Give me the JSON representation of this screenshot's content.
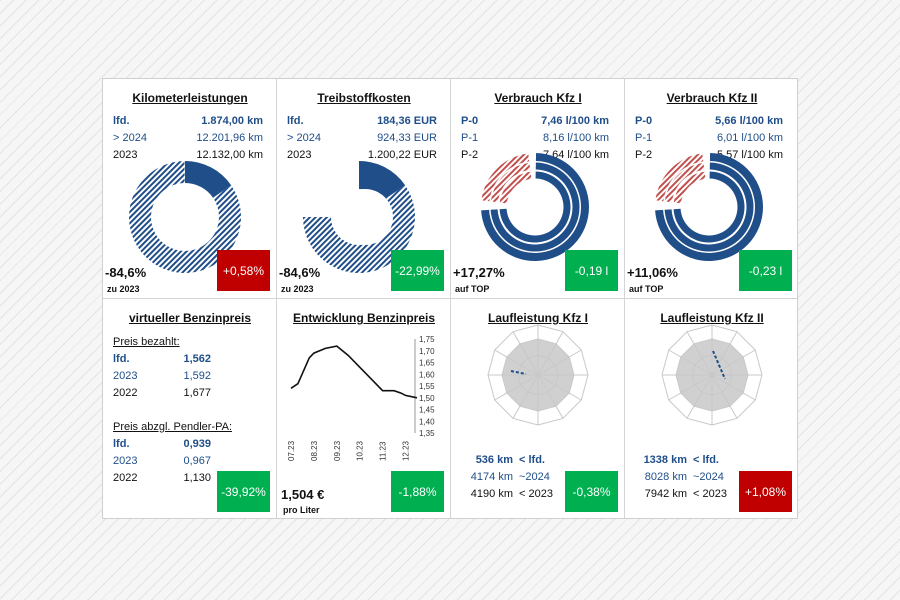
{
  "colors": {
    "navy": "#1f4e89",
    "green": "#00b050",
    "red": "#c00000",
    "hatch_red": "#c0504d",
    "radar_fill": "#d0d0d0"
  },
  "p1": {
    "title": "Kilometerleistungen",
    "rows": [
      {
        "k": "lfd.",
        "v": "1.874,00 km"
      },
      {
        "k": "> 2024",
        "v": "12.201,96 km"
      },
      {
        "k": "2023",
        "v": "12.132,00 km"
      }
    ],
    "pct": "-84,6%",
    "pct_sub": "zu 2023",
    "badge": "+0,58%",
    "share": 0.154
  },
  "p2": {
    "title": "Treibstoffkosten",
    "rows": [
      {
        "k": "lfd.",
        "v": "184,36 EUR"
      },
      {
        "k": "> 2024",
        "v": "924,33 EUR"
      },
      {
        "k": "2023",
        "v": "1.200,22 EUR"
      }
    ],
    "pct": "-84,6%",
    "pct_sub": "zu 2023",
    "badge": "-22,99%",
    "share": 0.154
  },
  "p3": {
    "title": "Verbrauch Kfz I",
    "rows": [
      {
        "k": "P-0",
        "v": "7,46 l/100 km"
      },
      {
        "k": "P-1",
        "v": "8,16 l/100 km"
      },
      {
        "k": "P-2",
        "v": "7,64 l/100 km"
      }
    ],
    "pct": "+17,27%",
    "pct_sub": "auf TOP",
    "badge": "-0,19 l"
  },
  "p4": {
    "title": "Verbrauch Kfz II",
    "rows": [
      {
        "k": "P-0",
        "v": "5,66 l/100 km"
      },
      {
        "k": "P-1",
        "v": "6,01 l/100 km"
      },
      {
        "k": "P-2",
        "v": "5,57 l/100 km"
      }
    ],
    "pct": "+11,06%",
    "pct_sub": "auf TOP",
    "badge": "-0,23 l"
  },
  "p5": {
    "title": "virtueller Benzinpreis",
    "sec1": "Preis bezahlt:",
    "rows1": [
      {
        "k": "lfd.",
        "v": "1,562"
      },
      {
        "k": "2023",
        "v": "1,592"
      },
      {
        "k": "2022",
        "v": "1,677"
      }
    ],
    "sec2": "Preis abzgl. Pendler-PA:",
    "rows2": [
      {
        "k": "lfd.",
        "v": "0,939"
      },
      {
        "k": "2023",
        "v": "0,967"
      },
      {
        "k": "2022",
        "v": "1,130"
      }
    ],
    "badge": "-39,92%"
  },
  "p6": {
    "title": "Entwicklung Benzinpreis",
    "price": "1,504 €",
    "price_sub": "pro Liter",
    "badge": "-1,88%"
  },
  "chart_data": {
    "type": "line",
    "categories": [
      "07.23",
      "08.23",
      "09.23",
      "10.23",
      "11.23",
      "12.23"
    ],
    "x": [
      0,
      0.3,
      0.8,
      1,
      1.5,
      2,
      2.5,
      3,
      3.5,
      4,
      4.5,
      4.8,
      5,
      5.5
    ],
    "values": [
      1.54,
      1.56,
      1.67,
      1.69,
      1.71,
      1.72,
      1.68,
      1.63,
      1.58,
      1.53,
      1.53,
      1.52,
      1.51,
      1.5
    ],
    "ylim": [
      1.35,
      1.75
    ],
    "yticks": [
      "1,75",
      "1,70",
      "1,65",
      "1,60",
      "1,55",
      "1,50",
      "1,45",
      "1,40",
      "1,35"
    ]
  },
  "p7": {
    "title": "Laufleistung Kfz I",
    "rows": [
      {
        "a": "536 km",
        "b": "< lfd."
      },
      {
        "a": "4174 km",
        "b": "~2024"
      },
      {
        "a": "4190 km",
        "b": "< 2023"
      }
    ],
    "badge": "-0,38%"
  },
  "p8": {
    "title": "Laufleistung Kfz II",
    "rows": [
      {
        "a": "1338 km",
        "b": "< lfd."
      },
      {
        "a": "8028 km",
        "b": "~2024"
      },
      {
        "a": "7942 km",
        "b": "< 2023"
      }
    ],
    "badge": "+1,08%"
  }
}
